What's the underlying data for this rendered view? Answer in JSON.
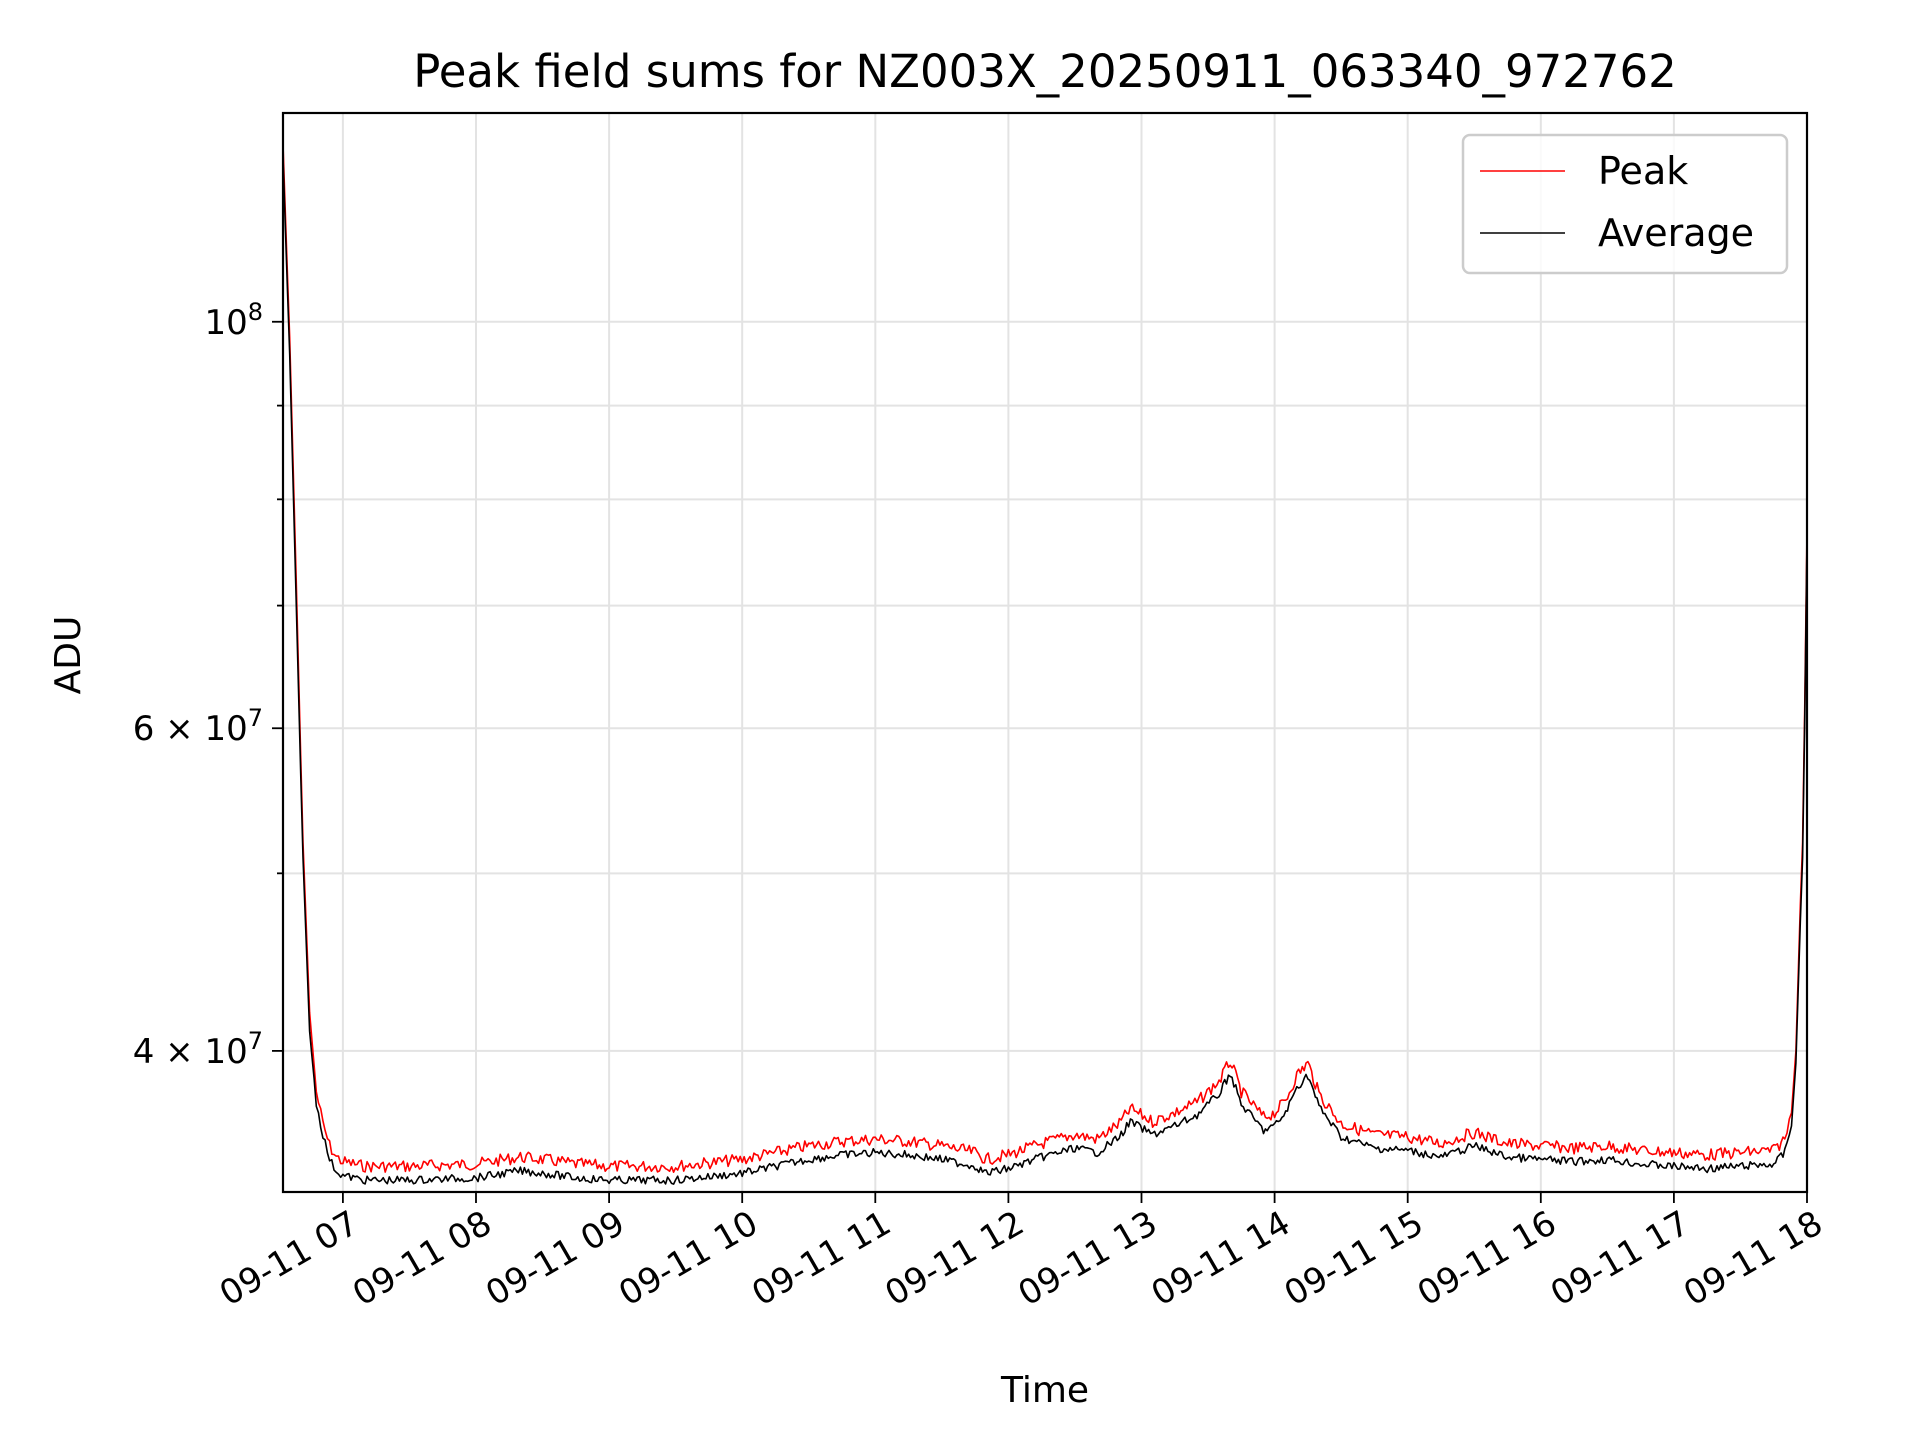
{
  "chart_data": {
    "type": "line",
    "title": "Peak field sums for NZ003X_20250911_063340_972762",
    "xlabel": "Time",
    "ylabel": "ADU",
    "y_scale": "log",
    "ylim": [
      33500000,
      130000000
    ],
    "xlim": [
      "2025-09-11 06:33",
      "2025-09-11 18:00"
    ],
    "grid": true,
    "legend_position": "top-right",
    "x_ticks": [
      {
        "value": "2025-09-11 07:00",
        "label": "09-11 07"
      },
      {
        "value": "2025-09-11 08:00",
        "label": "09-11 08"
      },
      {
        "value": "2025-09-11 09:00",
        "label": "09-11 09"
      },
      {
        "value": "2025-09-11 10:00",
        "label": "09-11 10"
      },
      {
        "value": "2025-09-11 11:00",
        "label": "09-11 11"
      },
      {
        "value": "2025-09-11 12:00",
        "label": "09-11 12"
      },
      {
        "value": "2025-09-11 13:00",
        "label": "09-11 13"
      },
      {
        "value": "2025-09-11 14:00",
        "label": "09-11 14"
      },
      {
        "value": "2025-09-11 15:00",
        "label": "09-11 15"
      },
      {
        "value": "2025-09-11 16:00",
        "label": "09-11 16"
      },
      {
        "value": "2025-09-11 17:00",
        "label": "09-11 17"
      },
      {
        "value": "2025-09-11 18:00",
        "label": "09-11 18"
      }
    ],
    "y_major_ticks": [
      {
        "value": 40000000,
        "mantissa": "4",
        "exponent": "7"
      },
      {
        "value": 60000000,
        "mantissa": "6",
        "exponent": "7"
      },
      {
        "value": 100000000,
        "mantissa": "",
        "exponent": "8"
      }
    ],
    "y_minor_ticks": [
      50000000,
      70000000,
      80000000,
      90000000
    ],
    "series": [
      {
        "name": "Peak",
        "color": "#ff0000",
        "x": [
          "2025-09-11 06:33",
          "2025-09-11 06:36",
          "2025-09-11 06:39",
          "2025-09-11 06:42",
          "2025-09-11 06:45",
          "2025-09-11 06:48",
          "2025-09-11 06:51",
          "2025-09-11 06:54",
          "2025-09-11 06:57",
          "2025-09-11 07:00",
          "2025-09-11 07:10",
          "2025-09-11 07:30",
          "2025-09-11 08:00",
          "2025-09-11 08:20",
          "2025-09-11 08:30",
          "2025-09-11 08:45",
          "2025-09-11 09:00",
          "2025-09-11 09:30",
          "2025-09-11 10:00",
          "2025-09-11 10:15",
          "2025-09-11 10:30",
          "2025-09-11 10:45",
          "2025-09-11 11:00",
          "2025-09-11 11:15",
          "2025-09-11 11:30",
          "2025-09-11 11:45",
          "2025-09-11 11:50",
          "2025-09-11 12:00",
          "2025-09-11 12:15",
          "2025-09-11 12:30",
          "2025-09-11 12:40",
          "2025-09-11 12:50",
          "2025-09-11 12:55",
          "2025-09-11 13:05",
          "2025-09-11 13:15",
          "2025-09-11 13:25",
          "2025-09-11 13:35",
          "2025-09-11 13:40",
          "2025-09-11 13:45",
          "2025-09-11 13:55",
          "2025-09-11 14:00",
          "2025-09-11 14:05",
          "2025-09-11 14:10",
          "2025-09-11 14:15",
          "2025-09-11 14:20",
          "2025-09-11 14:30",
          "2025-09-11 14:45",
          "2025-09-11 15:00",
          "2025-09-11 15:15",
          "2025-09-11 15:30",
          "2025-09-11 15:45",
          "2025-09-11 16:00",
          "2025-09-11 16:15",
          "2025-09-11 16:30",
          "2025-09-11 16:45",
          "2025-09-11 17:00",
          "2025-09-11 17:15",
          "2025-09-11 17:30",
          "2025-09-11 17:45",
          "2025-09-11 17:50",
          "2025-09-11 17:53",
          "2025-09-11 17:55",
          "2025-09-11 17:57",
          "2025-09-11 17:58",
          "2025-09-11 17:59",
          "2025-09-11 18:00"
        ],
        "values": [
          125000000,
          98000000,
          72000000,
          52000000,
          42000000,
          38000000,
          36500000,
          35500000,
          35000000,
          34800000,
          34600000,
          34600000,
          34700000,
          35000000,
          34900000,
          34700000,
          34600000,
          34600000,
          34900000,
          35200000,
          35500000,
          35700000,
          35800000,
          35700000,
          35500000,
          35200000,
          34900000,
          35100000,
          35600000,
          36000000,
          35800000,
          36500000,
          37200000,
          36600000,
          37000000,
          37500000,
          38500000,
          39500000,
          38000000,
          36800000,
          37000000,
          37600000,
          38800000,
          39400000,
          37900000,
          36500000,
          36000000,
          35900000,
          35600000,
          36100000,
          35600000,
          35500000,
          35400000,
          35500000,
          35300000,
          35200000,
          35100000,
          35200000,
          35300000,
          35800000,
          37000000,
          40000000,
          48000000,
          52000000,
          62000000,
          77000000
        ]
      },
      {
        "name": "Average",
        "color": "#000000",
        "x": [
          "2025-09-11 06:33",
          "2025-09-11 06:36",
          "2025-09-11 06:39",
          "2025-09-11 06:42",
          "2025-09-11 06:45",
          "2025-09-11 06:48",
          "2025-09-11 06:51",
          "2025-09-11 06:54",
          "2025-09-11 06:57",
          "2025-09-11 07:00",
          "2025-09-11 07:10",
          "2025-09-11 07:30",
          "2025-09-11 08:00",
          "2025-09-11 08:20",
          "2025-09-11 08:30",
          "2025-09-11 08:45",
          "2025-09-11 09:00",
          "2025-09-11 09:30",
          "2025-09-11 10:00",
          "2025-09-11 10:15",
          "2025-09-11 10:30",
          "2025-09-11 10:45",
          "2025-09-11 11:00",
          "2025-09-11 11:15",
          "2025-09-11 11:30",
          "2025-09-11 11:45",
          "2025-09-11 11:50",
          "2025-09-11 12:00",
          "2025-09-11 12:15",
          "2025-09-11 12:30",
          "2025-09-11 12:40",
          "2025-09-11 12:50",
          "2025-09-11 12:55",
          "2025-09-11 13:05",
          "2025-09-11 13:15",
          "2025-09-11 13:25",
          "2025-09-11 13:35",
          "2025-09-11 13:40",
          "2025-09-11 13:45",
          "2025-09-11 13:55",
          "2025-09-11 14:00",
          "2025-09-11 14:05",
          "2025-09-11 14:10",
          "2025-09-11 14:15",
          "2025-09-11 14:20",
          "2025-09-11 14:30",
          "2025-09-11 14:45",
          "2025-09-11 15:00",
          "2025-09-11 15:15",
          "2025-09-11 15:30",
          "2025-09-11 15:45",
          "2025-09-11 16:00",
          "2025-09-11 16:15",
          "2025-09-11 16:30",
          "2025-09-11 16:45",
          "2025-09-11 17:00",
          "2025-09-11 17:15",
          "2025-09-11 17:30",
          "2025-09-11 17:45",
          "2025-09-11 17:50",
          "2025-09-11 17:53",
          "2025-09-11 17:55",
          "2025-09-11 17:57",
          "2025-09-11 17:58",
          "2025-09-11 17:59",
          "2025-09-11 18:00"
        ],
        "values": [
          123000000,
          96000000,
          70000000,
          51000000,
          41000000,
          37500000,
          36000000,
          34900000,
          34400000,
          34200000,
          34000000,
          34000000,
          34100000,
          34400000,
          34300000,
          34100000,
          34000000,
          34000000,
          34300000,
          34600000,
          34900000,
          35100000,
          35200000,
          35100000,
          34900000,
          34600000,
          34300000,
          34500000,
          35000000,
          35400000,
          35200000,
          35900000,
          36600000,
          36000000,
          36400000,
          36900000,
          37900000,
          38900000,
          37400000,
          36200000,
          36400000,
          37000000,
          38200000,
          38800000,
          37300000,
          35900000,
          35400000,
          35300000,
          35000000,
          35500000,
          35000000,
          34900000,
          34800000,
          34900000,
          34700000,
          34600000,
          34500000,
          34600000,
          34700000,
          35200000,
          36400000,
          39400000,
          47000000,
          51000000,
          61000000,
          76000000
        ]
      }
    ]
  }
}
